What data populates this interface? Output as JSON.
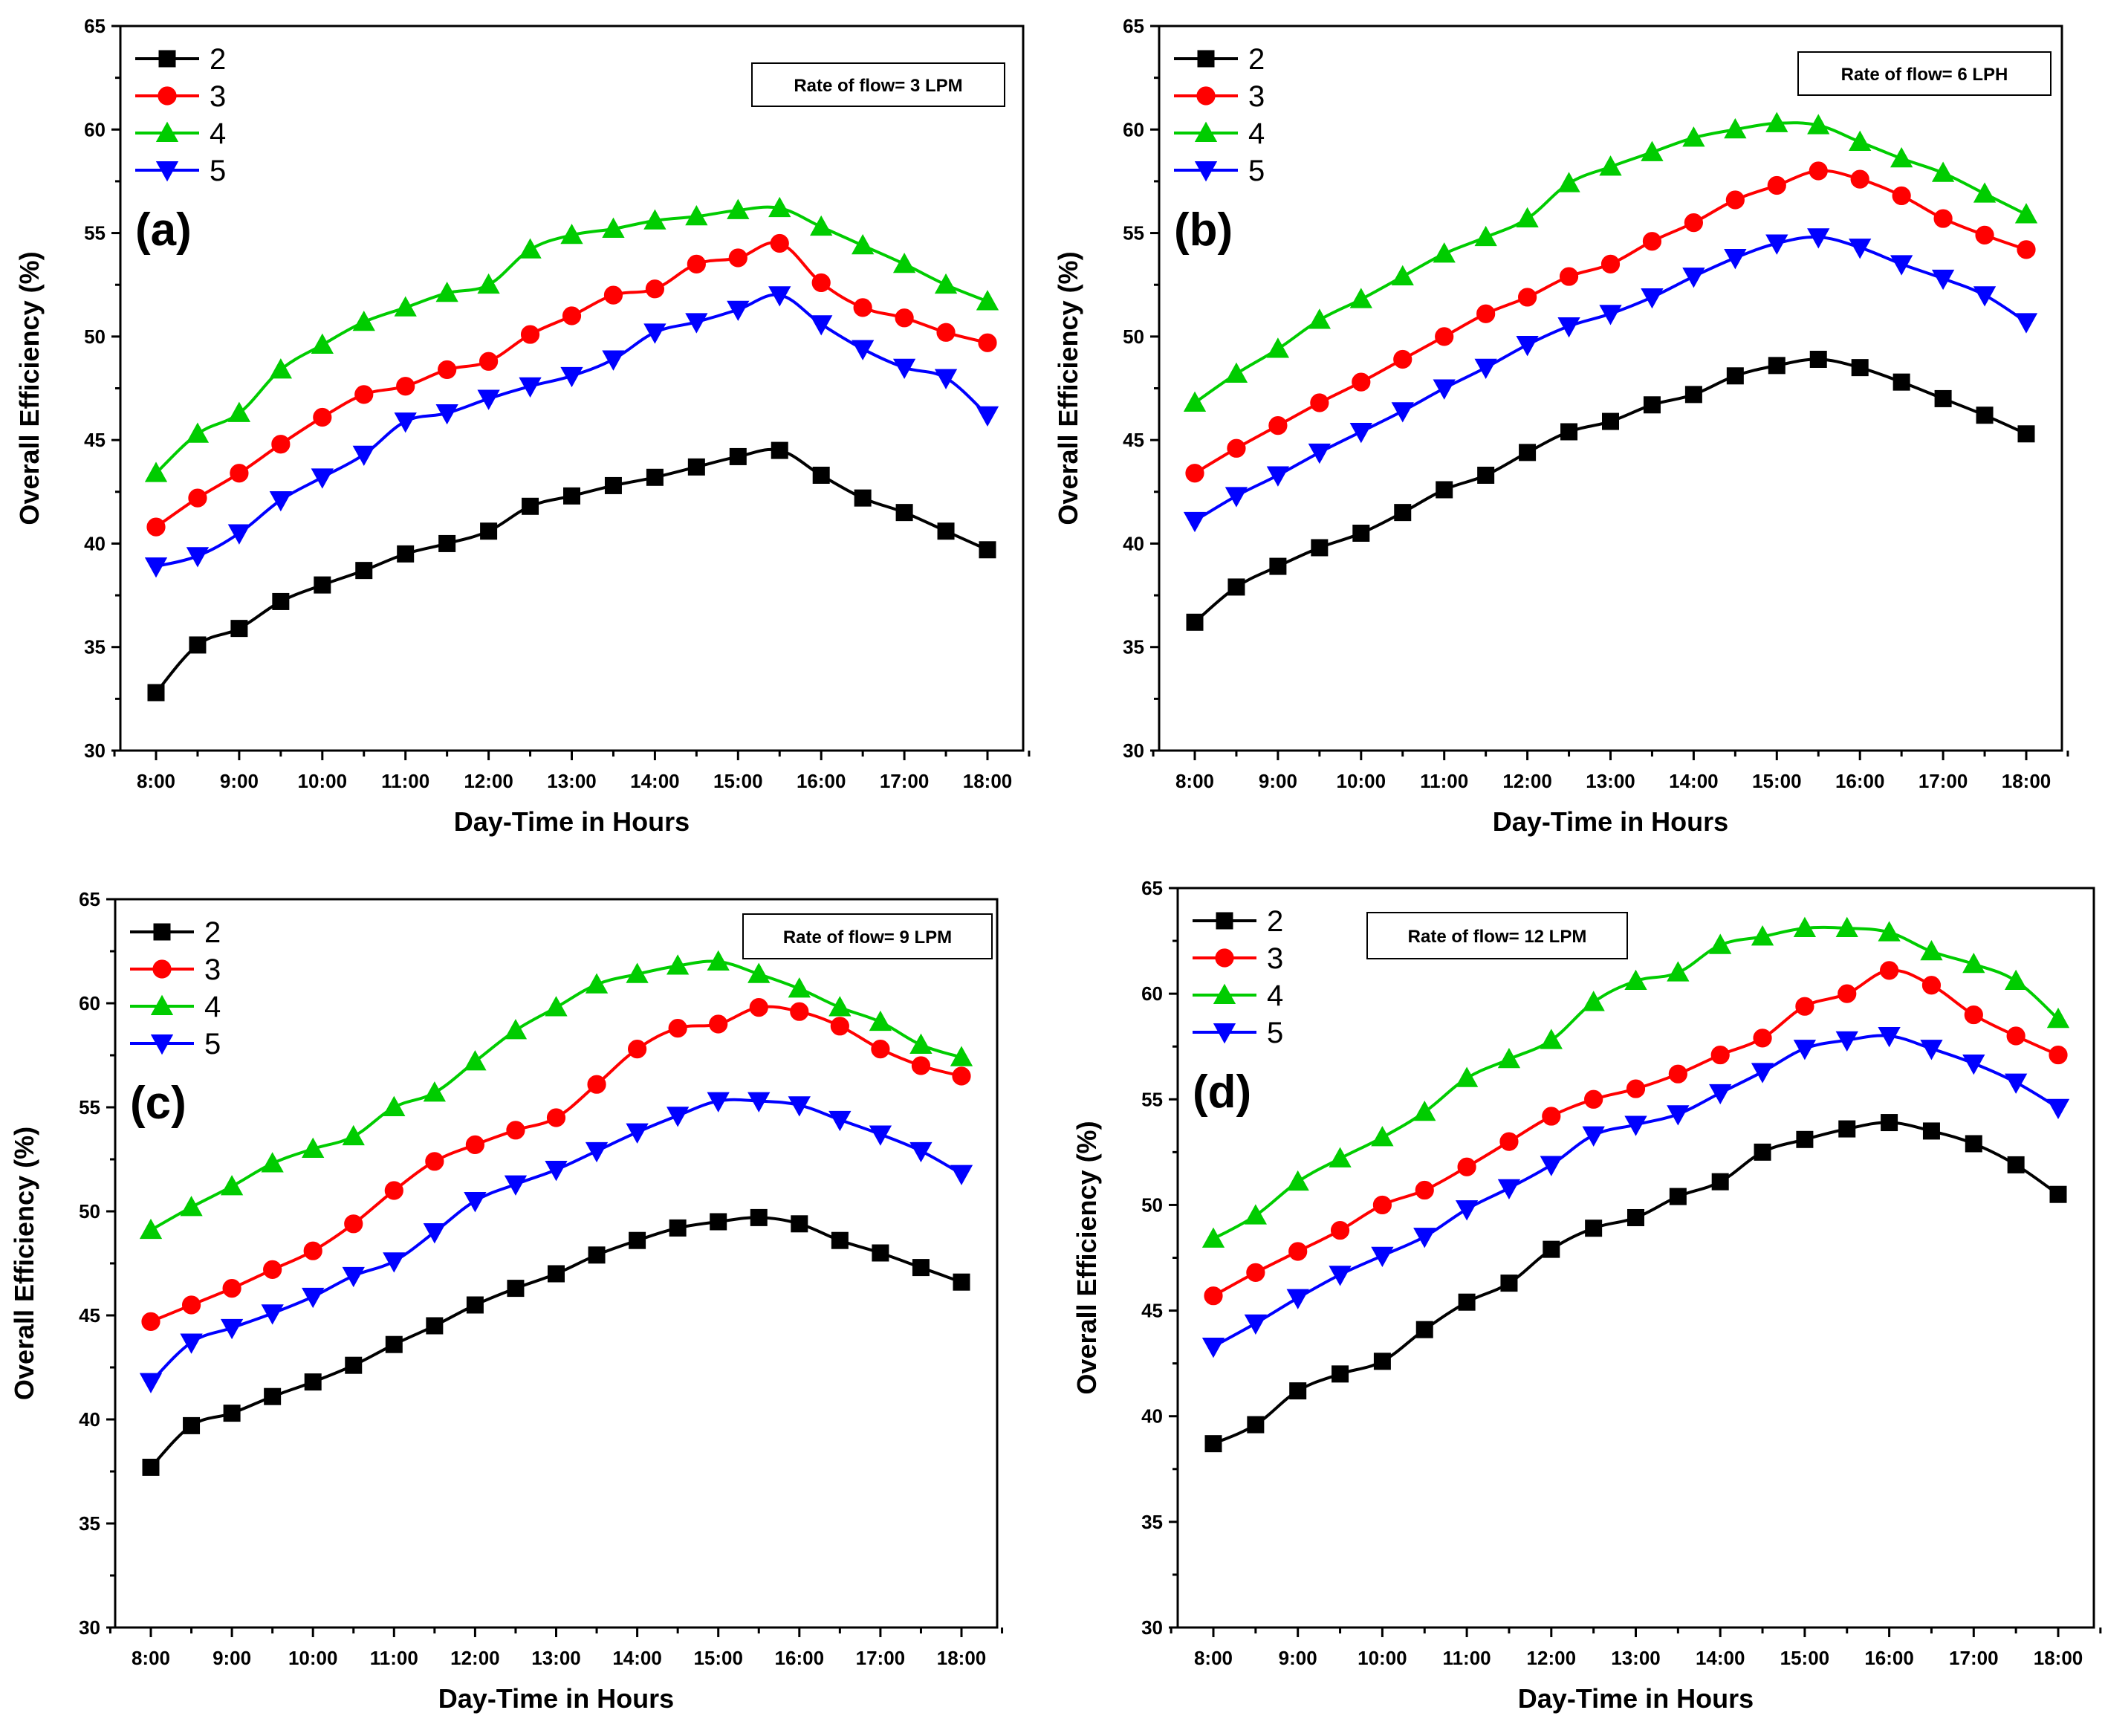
{
  "chart_data": [
    {
      "type": "line",
      "panel_label": "(a)",
      "annotation": "Rate of flow= 3 LPM",
      "xlabel": "Day-Time in Hours",
      "ylabel": "Overall Efficiency (%)",
      "x_tick_labels": [
        "8:00",
        "9:00",
        "10:00",
        "11:00",
        "12:00",
        "13:00",
        "14:00",
        "15:00",
        "16:00",
        "17:00",
        "18:00"
      ],
      "x_hours": [
        8,
        8.5,
        9,
        9.5,
        10,
        10.5,
        11,
        11.5,
        12,
        12.5,
        13,
        13.5,
        14,
        14.5,
        15,
        15.5,
        16,
        16.5,
        17,
        17.5,
        18
      ],
      "ylim": [
        30,
        65
      ],
      "y_ticks": [
        30,
        35,
        40,
        45,
        50,
        55,
        60,
        65
      ],
      "legend_position": "top-left",
      "series": [
        {
          "name": "2",
          "color": "#000000",
          "marker": "square",
          "values": [
            32.8,
            35.1,
            35.9,
            37.2,
            38.0,
            38.7,
            39.5,
            40.0,
            40.6,
            41.8,
            42.3,
            42.8,
            43.2,
            43.7,
            44.2,
            44.5,
            43.3,
            42.2,
            41.5,
            40.6,
            39.7
          ]
        },
        {
          "name": "3",
          "color": "#ff0000",
          "marker": "circle",
          "values": [
            40.8,
            42.2,
            43.4,
            44.8,
            46.1,
            47.2,
            47.6,
            48.4,
            48.8,
            50.1,
            51.0,
            52.0,
            52.3,
            53.5,
            53.8,
            54.5,
            52.6,
            51.4,
            50.9,
            50.2,
            49.7
          ]
        },
        {
          "name": "4",
          "color": "#00cc00",
          "marker": "triangle-up",
          "values": [
            43.4,
            45.3,
            46.3,
            48.4,
            49.6,
            50.7,
            51.4,
            52.1,
            52.5,
            54.2,
            54.9,
            55.2,
            55.6,
            55.8,
            56.1,
            56.2,
            55.3,
            54.4,
            53.5,
            52.5,
            51.7
          ]
        },
        {
          "name": "5",
          "color": "#0000ff",
          "marker": "triangle-down",
          "values": [
            38.9,
            39.4,
            40.5,
            42.1,
            43.2,
            44.3,
            45.9,
            46.3,
            47.0,
            47.6,
            48.1,
            48.9,
            50.2,
            50.7,
            51.3,
            52.0,
            50.6,
            49.4,
            48.5,
            48.0,
            46.2
          ]
        }
      ]
    },
    {
      "type": "line",
      "panel_label": "(b)",
      "annotation": "Rate of flow= 6 LPH",
      "xlabel": "Day-Time in Hours",
      "ylabel": "Overall Efficiency (%)",
      "x_tick_labels": [
        "8:00",
        "9:00",
        "10:00",
        "11:00",
        "12:00",
        "13:00",
        "14:00",
        "15:00",
        "16:00",
        "17:00",
        "18:00"
      ],
      "x_hours": [
        8,
        8.5,
        9,
        9.5,
        10,
        10.5,
        11,
        11.5,
        12,
        12.5,
        13,
        13.5,
        14,
        14.5,
        15,
        15.5,
        16,
        16.5,
        17,
        17.5,
        18
      ],
      "ylim": [
        30,
        65
      ],
      "y_ticks": [
        30,
        35,
        40,
        45,
        50,
        55,
        60,
        65
      ],
      "legend_position": "top-left",
      "series": [
        {
          "name": "2",
          "color": "#000000",
          "marker": "square",
          "values": [
            36.2,
            37.9,
            38.9,
            39.8,
            40.5,
            41.5,
            42.6,
            43.3,
            44.4,
            45.4,
            45.9,
            46.7,
            47.2,
            48.1,
            48.6,
            48.9,
            48.5,
            47.8,
            47.0,
            46.2,
            45.3
          ]
        },
        {
          "name": "3",
          "color": "#ff0000",
          "marker": "circle",
          "values": [
            43.4,
            44.6,
            45.7,
            46.8,
            47.8,
            48.9,
            50.0,
            51.1,
            51.9,
            52.9,
            53.5,
            54.6,
            55.5,
            56.6,
            57.3,
            58.0,
            57.6,
            56.8,
            55.7,
            54.9,
            54.2
          ]
        },
        {
          "name": "4",
          "color": "#00cc00",
          "marker": "triangle-up",
          "values": [
            46.8,
            48.2,
            49.4,
            50.8,
            51.8,
            52.9,
            54.0,
            54.8,
            55.7,
            57.4,
            58.2,
            58.9,
            59.6,
            60.0,
            60.3,
            60.2,
            59.4,
            58.6,
            57.9,
            56.9,
            55.9
          ]
        },
        {
          "name": "5",
          "color": "#0000ff",
          "marker": "triangle-down",
          "values": [
            41.1,
            42.3,
            43.3,
            44.4,
            45.4,
            46.4,
            47.5,
            48.5,
            49.6,
            50.5,
            51.1,
            51.9,
            52.9,
            53.8,
            54.5,
            54.8,
            54.3,
            53.5,
            52.8,
            52.0,
            50.7
          ]
        }
      ]
    },
    {
      "type": "line",
      "panel_label": "(c)",
      "annotation": "Rate of flow= 9 LPM",
      "xlabel": "Day-Time in Hours",
      "ylabel": "Overall Efficiency (%)",
      "x_tick_labels": [
        "8:00",
        "9:00",
        "10:00",
        "11:00",
        "12:00",
        "13:00",
        "14:00",
        "15:00",
        "16:00",
        "17:00",
        "18:00"
      ],
      "x_hours": [
        8,
        8.5,
        9,
        9.5,
        10,
        10.5,
        11,
        11.5,
        12,
        12.5,
        13,
        13.5,
        14,
        14.5,
        15,
        15.5,
        16,
        16.5,
        17,
        17.5,
        18
      ],
      "ylim": [
        30,
        65
      ],
      "y_ticks": [
        30,
        35,
        40,
        45,
        50,
        55,
        60,
        65
      ],
      "legend_position": "top-left",
      "series": [
        {
          "name": "2",
          "color": "#000000",
          "marker": "square",
          "values": [
            37.7,
            39.7,
            40.3,
            41.1,
            41.8,
            42.6,
            43.6,
            44.5,
            45.5,
            46.3,
            47.0,
            47.9,
            48.6,
            49.2,
            49.5,
            49.7,
            49.4,
            48.6,
            48.0,
            47.3,
            46.6
          ]
        },
        {
          "name": "3",
          "color": "#ff0000",
          "marker": "circle",
          "values": [
            44.7,
            45.5,
            46.3,
            47.2,
            48.1,
            49.4,
            51.0,
            52.4,
            53.2,
            53.9,
            54.5,
            56.1,
            57.8,
            58.8,
            59.0,
            59.8,
            59.6,
            58.9,
            57.8,
            57.0,
            56.5
          ]
        },
        {
          "name": "4",
          "color": "#00cc00",
          "marker": "triangle-up",
          "values": [
            49.1,
            50.2,
            51.2,
            52.3,
            53.0,
            53.6,
            55.0,
            55.7,
            57.2,
            58.7,
            59.8,
            60.9,
            61.4,
            61.8,
            62.0,
            61.4,
            60.7,
            59.8,
            59.1,
            58.0,
            57.4
          ]
        },
        {
          "name": "5",
          "color": "#0000ff",
          "marker": "triangle-down",
          "values": [
            41.8,
            43.7,
            44.4,
            45.1,
            45.9,
            46.9,
            47.6,
            49.0,
            50.5,
            51.3,
            52.0,
            52.9,
            53.8,
            54.6,
            55.3,
            55.3,
            55.1,
            54.4,
            53.7,
            52.9,
            51.8
          ]
        }
      ]
    },
    {
      "type": "line",
      "panel_label": "(d)",
      "annotation": "Rate of flow= 12 LPM",
      "xlabel": "Day-Time in Hours",
      "ylabel": "Overall Efficiency (%)",
      "x_tick_labels": [
        "8:00",
        "9:00",
        "10:00",
        "11:00",
        "12:00",
        "13:00",
        "14:00",
        "15:00",
        "16:00",
        "17:00",
        "18:00"
      ],
      "x_hours": [
        8,
        8.5,
        9,
        9.5,
        10,
        10.5,
        11,
        11.5,
        12,
        12.5,
        13,
        13.5,
        14,
        14.5,
        15,
        15.5,
        16,
        16.5,
        17,
        17.5,
        18
      ],
      "ylim": [
        30,
        65
      ],
      "y_ticks": [
        30,
        35,
        40,
        45,
        50,
        55,
        60,
        65
      ],
      "legend_position": "top-left",
      "series": [
        {
          "name": "2",
          "color": "#000000",
          "marker": "square",
          "values": [
            38.7,
            39.6,
            41.2,
            42.0,
            42.6,
            44.1,
            45.4,
            46.3,
            47.9,
            48.9,
            49.4,
            50.4,
            51.1,
            52.5,
            53.1,
            53.6,
            53.9,
            53.5,
            52.9,
            51.9,
            50.5
          ]
        },
        {
          "name": "3",
          "color": "#ff0000",
          "marker": "circle",
          "values": [
            45.7,
            46.8,
            47.8,
            48.8,
            50.0,
            50.7,
            51.8,
            53.0,
            54.2,
            55.0,
            55.5,
            56.2,
            57.1,
            57.9,
            59.4,
            60.0,
            61.1,
            60.4,
            59.0,
            58.0,
            57.1
          ]
        },
        {
          "name": "4",
          "color": "#00cc00",
          "marker": "triangle-up",
          "values": [
            48.4,
            49.5,
            51.1,
            52.2,
            53.2,
            54.4,
            56.0,
            56.9,
            57.8,
            59.6,
            60.6,
            61.0,
            62.3,
            62.7,
            63.1,
            63.1,
            62.9,
            62.0,
            61.4,
            60.6,
            58.8
          ]
        },
        {
          "name": "5",
          "color": "#0000ff",
          "marker": "triangle-down",
          "values": [
            43.3,
            44.4,
            45.6,
            46.7,
            47.6,
            48.5,
            49.8,
            50.8,
            51.9,
            53.3,
            53.8,
            54.3,
            55.3,
            56.3,
            57.4,
            57.8,
            58.0,
            57.4,
            56.7,
            55.8,
            54.6
          ]
        }
      ]
    }
  ]
}
